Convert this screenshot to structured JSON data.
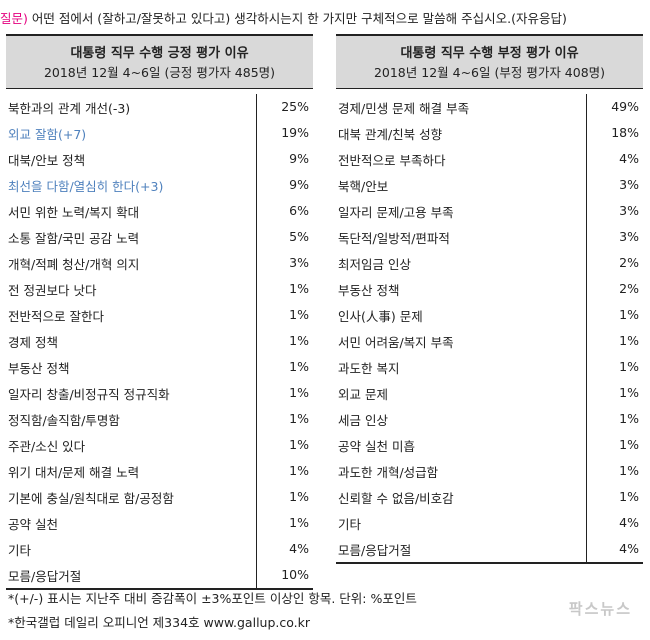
{
  "question": {
    "tag": "질문)",
    "text": " 어떤 점에서 (잘하고/잘못하고 있다고) 생각하시는지 한 가지만 구체적으로 말씀해 주십시오.(자유응답)"
  },
  "left": {
    "title": "대통령 직무 수행 긍정 평가 이유",
    "subtitle": "2018년 12월 4~6일 (긍정 평가자 485명)",
    "rows": [
      {
        "label": "북한과의 관계 개선(-3)",
        "value": "25%",
        "highlight": false
      },
      {
        "label": "외교 잘함(+7)",
        "value": "19%",
        "highlight": true
      },
      {
        "label": "대북/안보 정책",
        "value": "9%",
        "highlight": false
      },
      {
        "label": "최선을 다함/열심히 한다(+3)",
        "value": "9%",
        "highlight": true
      },
      {
        "label": "서민 위한 노력/복지 확대",
        "value": "6%",
        "highlight": false
      },
      {
        "label": "소통 잘함/국민 공감 노력",
        "value": "5%",
        "highlight": false
      },
      {
        "label": "개혁/적폐 청산/개혁 의지",
        "value": "3%",
        "highlight": false
      },
      {
        "label": "전 정권보다 낫다",
        "value": "1%",
        "highlight": false
      },
      {
        "label": "전반적으로 잘한다",
        "value": "1%",
        "highlight": false
      },
      {
        "label": "경제 정책",
        "value": "1%",
        "highlight": false
      },
      {
        "label": "부동산 정책",
        "value": "1%",
        "highlight": false
      },
      {
        "label": "일자리 창출/비정규직 정규직화",
        "value": "1%",
        "highlight": false
      },
      {
        "label": "정직함/솔직함/투명함",
        "value": "1%",
        "highlight": false
      },
      {
        "label": "주관/소신 있다",
        "value": "1%",
        "highlight": false
      },
      {
        "label": "위기 대처/문제 해결 노력",
        "value": "1%",
        "highlight": false
      },
      {
        "label": "기본에 충실/원칙대로 함/공정함",
        "value": "1%",
        "highlight": false
      },
      {
        "label": "공약 실천",
        "value": "1%",
        "highlight": false
      },
      {
        "label": "기타",
        "value": "4%",
        "highlight": false
      },
      {
        "label": "모름/응답거절",
        "value": "10%",
        "highlight": false
      }
    ]
  },
  "right": {
    "title": "대통령 직무 수행 부정 평가 이유",
    "subtitle": "2018년 12월 4~6일 (부정 평가자 408명)",
    "rows": [
      {
        "label": "경제/민생 문제 해결 부족",
        "value": "49%"
      },
      {
        "label": "대북 관계/친북 성향",
        "value": "18%"
      },
      {
        "label": "전반적으로 부족하다",
        "value": "4%"
      },
      {
        "label": "북핵/안보",
        "value": "3%"
      },
      {
        "label": "일자리 문제/고용 부족",
        "value": "3%"
      },
      {
        "label": "독단적/일방적/편파적",
        "value": "3%"
      },
      {
        "label": "최저임금 인상",
        "value": "2%"
      },
      {
        "label": "부동산 정책",
        "value": "2%"
      },
      {
        "label": "인사(人事) 문제",
        "value": "1%"
      },
      {
        "label": "서민 어려움/복지 부족",
        "value": "1%"
      },
      {
        "label": "과도한 복지",
        "value": "1%"
      },
      {
        "label": "외교 문제",
        "value": "1%"
      },
      {
        "label": "세금 인상",
        "value": "1%"
      },
      {
        "label": "공약 실천 미흡",
        "value": "1%"
      },
      {
        "label": "과도한 개혁/성급함",
        "value": "1%"
      },
      {
        "label": "신뢰할 수 없음/비호감",
        "value": "1%"
      },
      {
        "label": "기타",
        "value": "4%"
      },
      {
        "label": "모름/응답거절",
        "value": "4%"
      }
    ]
  },
  "footnotes": {
    "note1": "*(+/-) 표시는 지난주 대비 증감폭이 ±3%포인트 이상인 항목. 단위: %포인트",
    "note2": "*한국갤럽 데일리 오피니언 제334호 www.gallup.co.kr"
  },
  "watermark": "팍스뉴스",
  "colors": {
    "highlight": "#4f81bd",
    "question_tag": "#e4007f",
    "header_bg": "#d9d9d9"
  }
}
